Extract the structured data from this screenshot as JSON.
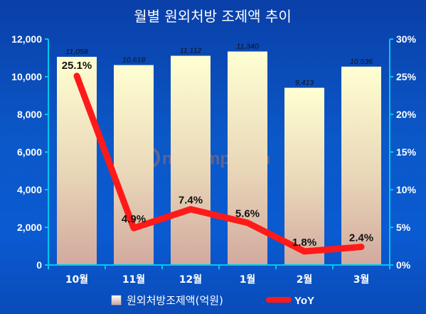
{
  "chart_data": {
    "type": "bar",
    "title": "월별 원외처방 조제액 추이",
    "categories": [
      "10월",
      "11월",
      "12월",
      "1월",
      "2월",
      "3월"
    ],
    "series": [
      {
        "name": "원외처방조제액(억원)",
        "type": "bar",
        "axis": "left",
        "values": [
          11058,
          10618,
          11112,
          11340,
          9413,
          10536
        ],
        "labels": [
          "11,058",
          "10,618",
          "11,112",
          "11,340",
          "9,413",
          "10,536"
        ]
      },
      {
        "name": "YoY",
        "type": "line",
        "axis": "right",
        "values": [
          25.1,
          4.9,
          7.4,
          5.6,
          1.8,
          2.4
        ],
        "labels": [
          "25.1%",
          "4.9%",
          "7.4%",
          "5.6%",
          "1.8%",
          "2.4%"
        ]
      }
    ],
    "ylim": [
      0,
      12000
    ],
    "y2lim": [
      0,
      30
    ],
    "yticks": [
      "0",
      "2,000",
      "4,000",
      "6,000",
      "8,000",
      "10,000",
      "12,000"
    ],
    "y2ticks": [
      "0%",
      "5%",
      "10%",
      "15%",
      "20%",
      "25%",
      "30%"
    ],
    "grid": false,
    "legend": "bottom",
    "colors": {
      "background": "#0b4fc0",
      "bar_top": "#ffffd0",
      "bar_bottom": "#d6b2a6",
      "line": "#ff1a1a"
    },
    "watermark": "newsmp.com"
  }
}
